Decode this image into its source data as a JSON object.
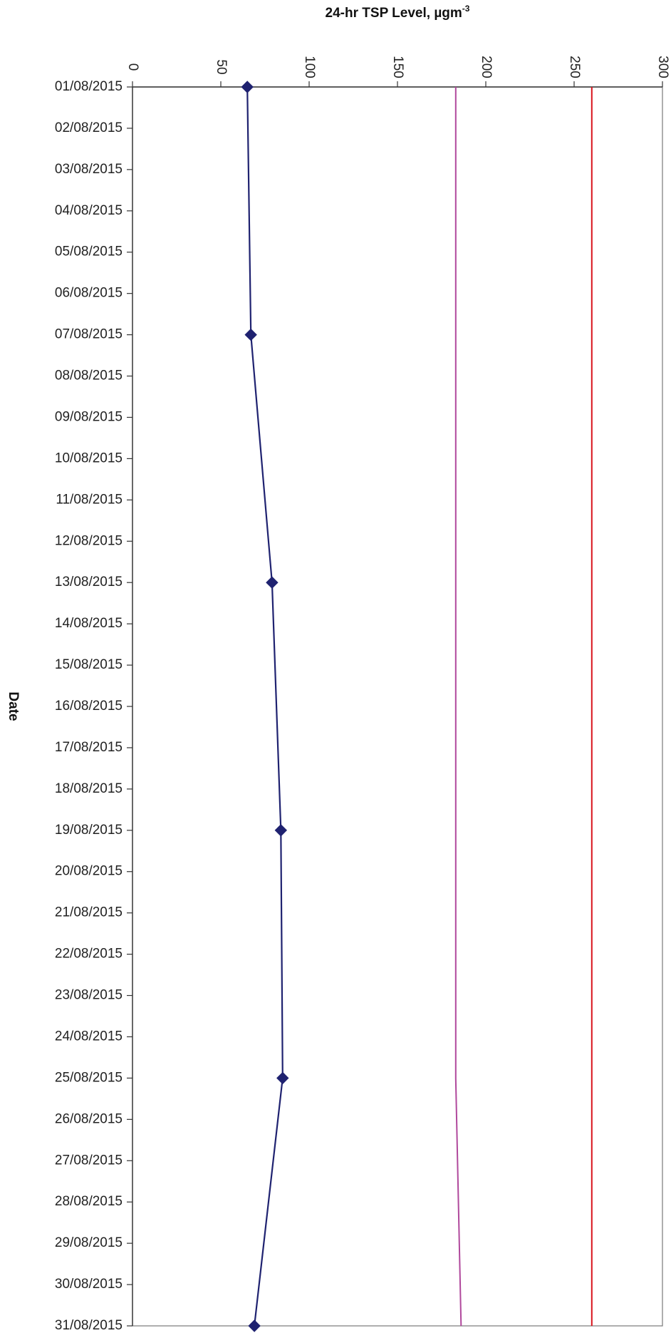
{
  "chart_data": {
    "type": "line",
    "orientation": "rotated",
    "xlabel": "Date",
    "ylabel_main": "24-hr TSP Level, µgm",
    "ylabel_sup": "-3",
    "ylim": [
      0,
      300
    ],
    "y_ticks": [
      0,
      50,
      100,
      150,
      200,
      250,
      300
    ],
    "categories": [
      "01/08/2015",
      "02/08/2015",
      "03/08/2015",
      "04/08/2015",
      "05/08/2015",
      "06/08/2015",
      "07/08/2015",
      "08/08/2015",
      "09/08/2015",
      "10/08/2015",
      "11/08/2015",
      "12/08/2015",
      "13/08/2015",
      "14/08/2015",
      "15/08/2015",
      "16/08/2015",
      "17/08/2015",
      "18/08/2015",
      "19/08/2015",
      "20/08/2015",
      "21/08/2015",
      "22/08/2015",
      "23/08/2015",
      "24/08/2015",
      "25/08/2015",
      "26/08/2015",
      "27/08/2015",
      "28/08/2015",
      "29/08/2015",
      "30/08/2015",
      "31/08/2015"
    ],
    "series": [
      {
        "color": "#1f2270",
        "marker": "diamond",
        "points": [
          {
            "x": "01/08/2015",
            "y": 65
          },
          {
            "x": "07/08/2015",
            "y": 67
          },
          {
            "x": "13/08/2015",
            "y": 79
          },
          {
            "x": "19/08/2015",
            "y": 84
          },
          {
            "x": "25/08/2015",
            "y": 85
          },
          {
            "x": "31/08/2015",
            "y": 69
          }
        ]
      },
      {
        "color": "#b0489c",
        "marker": "none",
        "points": [
          {
            "x": "01/08/2015",
            "y": 183
          },
          {
            "x": "25/08/2015",
            "y": 183
          },
          {
            "x": "31/08/2015",
            "y": 186
          }
        ]
      },
      {
        "color": "#d9141c",
        "marker": "none",
        "points": [
          {
            "x": "01/08/2015",
            "y": 260
          },
          {
            "x": "31/08/2015",
            "y": 260
          }
        ]
      }
    ],
    "grid": false,
    "legend": "none"
  }
}
